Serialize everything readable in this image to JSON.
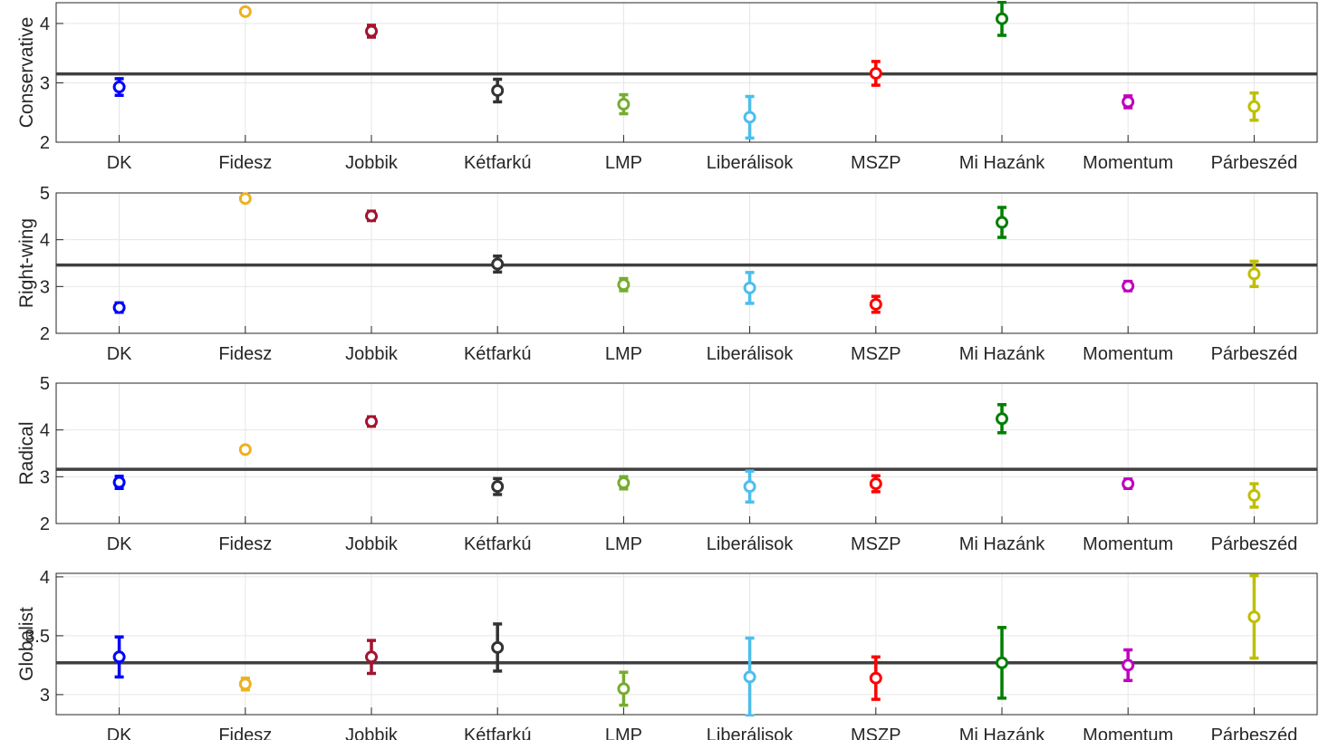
{
  "chart_data": [
    {
      "type": "scatter",
      "ylabel": "Conservative",
      "ylim": [
        2,
        4.35
      ],
      "yticks": [
        2,
        3,
        4
      ],
      "reference_line": 3.15,
      "categories": [
        "DK",
        "Fidesz",
        "Jobbik",
        "Kétfarkú",
        "LMP",
        "Liberálisok",
        "MSZP",
        "Mi Hazánk",
        "Momentum",
        "Párbeszéd"
      ],
      "values": [
        2.93,
        4.2,
        3.87,
        2.87,
        2.64,
        2.42,
        3.16,
        4.08,
        2.68,
        2.6
      ],
      "errors": [
        0.14,
        0.04,
        0.1,
        0.19,
        0.16,
        0.35,
        0.2,
        0.28,
        0.1,
        0.23
      ],
      "grid": true
    },
    {
      "type": "scatter",
      "ylabel": "Right-wing",
      "ylim": [
        2,
        5
      ],
      "yticks": [
        2,
        3,
        4,
        5
      ],
      "reference_line": 3.46,
      "categories": [
        "DK",
        "Fidesz",
        "Jobbik",
        "Kétfarkú",
        "LMP",
        "Liberálisok",
        "MSZP",
        "Mi Hazánk",
        "Momentum",
        "Párbeszéd"
      ],
      "values": [
        2.55,
        4.88,
        4.51,
        3.48,
        3.04,
        2.97,
        2.62,
        4.37,
        3.01,
        3.27
      ],
      "errors": [
        0.1,
        0.04,
        0.1,
        0.17,
        0.13,
        0.33,
        0.17,
        0.32,
        0.1,
        0.27
      ],
      "grid": true
    },
    {
      "type": "scatter",
      "ylabel": "Radical",
      "ylim": [
        2,
        5
      ],
      "yticks": [
        2,
        3,
        4,
        5
      ],
      "reference_line": 3.16,
      "categories": [
        "DK",
        "Fidesz",
        "Jobbik",
        "Kétfarkú",
        "LMP",
        "Liberálisok",
        "MSZP",
        "Mi Hazánk",
        "Momentum",
        "Párbeszéd"
      ],
      "values": [
        2.88,
        3.58,
        4.18,
        2.79,
        2.87,
        2.79,
        2.85,
        4.24,
        2.85,
        2.6
      ],
      "errors": [
        0.13,
        0.04,
        0.1,
        0.17,
        0.13,
        0.33,
        0.17,
        0.3,
        0.1,
        0.25
      ],
      "grid": true
    },
    {
      "type": "scatter",
      "ylabel": "Globalist",
      "ylim": [
        2.83,
        4.03
      ],
      "yticks": [
        3,
        3.5,
        4
      ],
      "yticklabels": [
        "3",
        "3.5",
        "4"
      ],
      "reference_line": 3.27,
      "categories": [
        "DK",
        "Fidesz",
        "Jobbik",
        "Kétfarkú",
        "LMP",
        "Liberálisok",
        "MSZP",
        "Mi Hazánk",
        "Momentum",
        "Párbeszéd"
      ],
      "values": [
        3.32,
        3.09,
        3.32,
        3.4,
        3.05,
        3.15,
        3.14,
        3.27,
        3.25,
        3.66
      ],
      "errors": [
        0.17,
        0.05,
        0.14,
        0.2,
        0.14,
        0.33,
        0.18,
        0.3,
        0.13,
        0.35
      ],
      "grid": true
    }
  ],
  "colors": {
    "series": [
      "#0000FF",
      "#EDB120",
      "#A2142F",
      "#333333",
      "#77AC30",
      "#4DBEEE",
      "#FF0000",
      "#007F00",
      "#BF00BF",
      "#BFBF00"
    ],
    "reference_line": "#404040",
    "grid": "#E6E6E6",
    "axis": "#262626"
  }
}
